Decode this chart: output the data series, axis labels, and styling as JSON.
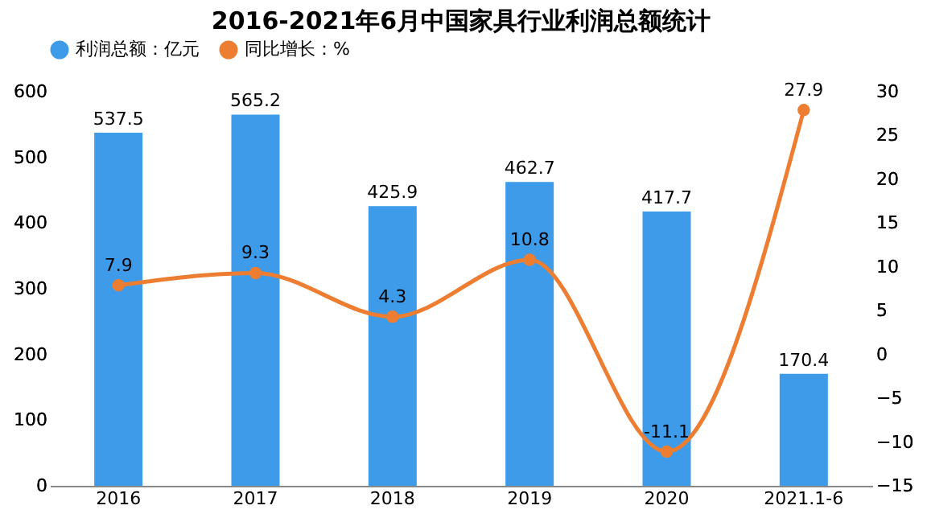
{
  "chart_data": {
    "type": "bar",
    "title": "2016-2021年6月中国家具行业利润总额统计",
    "categories": [
      "2016",
      "2017",
      "2018",
      "2019",
      "2020",
      "2021.1-6"
    ],
    "series": [
      {
        "name": "利润总额：亿元",
        "color": "#3d9be9",
        "values": [
          537.5,
          565.2,
          425.9,
          462.7,
          417.7,
          170.4
        ]
      },
      {
        "name": "同比增长：%",
        "type": "line",
        "axis": "y2",
        "color": "#ed7d31",
        "values": [
          7.9,
          9.3,
          4.3,
          10.8,
          -11.1,
          27.9
        ]
      }
    ],
    "ylim": [
      0,
      600
    ],
    "yticks": [
      0,
      100,
      200,
      300,
      400,
      500,
      600
    ],
    "y2lim": [
      -15,
      30
    ],
    "y2ticks": [
      -15,
      -10,
      -5,
      0,
      5,
      10,
      15,
      20,
      25,
      30
    ],
    "data_labels": true,
    "legend": "top",
    "marker": "circle",
    "grid": false
  }
}
